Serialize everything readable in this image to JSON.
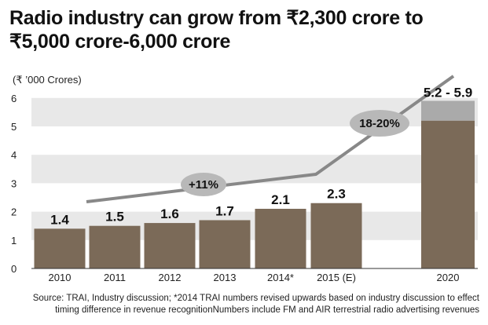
{
  "title": "Radio industry can grow from ₹2,300 crore to ₹5,000 crore-6,000 crore",
  "source": "Source: TRAI, Industry discussion; *2014 TRAI numbers revised upwards based on industry discussion to effect timing difference in revenue recognitionNumbers include FM and AIR terrestrial radio advertising revenues",
  "chart_data": {
    "type": "bar",
    "unit_label": "(₹ ’000 Crores)",
    "categories": [
      "2010",
      "2011",
      "2012",
      "2013",
      "2014*",
      "2015 (E)",
      "2020"
    ],
    "values": [
      1.4,
      1.5,
      1.6,
      1.7,
      2.1,
      2.3,
      5.2
    ],
    "value_labels": [
      "1.4",
      "1.5",
      "1.6",
      "1.7",
      "2.1",
      "2.3",
      "5.2 - 5.9"
    ],
    "range_top_2020": 5.9,
    "ylim": [
      0,
      6
    ],
    "yticks": [
      "0",
      "1",
      "2",
      "3",
      "4",
      "5",
      "6"
    ],
    "grid": "alternating horizontal bands",
    "colors": {
      "bar": "#7b6a58",
      "bar_range": "#aaaaaa",
      "band": "#e8e8e8",
      "trend": "#888888",
      "bubble": "#b8b8b8"
    },
    "trend_annotations": [
      "+11%",
      "18-20%"
    ]
  }
}
